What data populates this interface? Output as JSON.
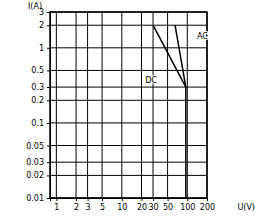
{
  "chart_data": {
    "type": "line",
    "x_label": "U(V)",
    "y_label": "I(A)",
    "log": true,
    "grid": true,
    "xlim": [
      0.8,
      200
    ],
    "xticks": [
      1,
      2,
      3,
      5,
      10,
      20,
      30,
      50,
      100,
      200
    ],
    "ylim": [
      0.01,
      3
    ],
    "yticks": [
      0.01,
      0.02,
      0.03,
      0.05,
      0.1,
      0.2,
      0.3,
      0.5,
      1,
      2,
      3
    ],
    "series": [
      {
        "name": "DC",
        "color": "#000000",
        "x": [
          30,
          95,
          95
        ],
        "values": [
          2,
          0.3,
          0.01
        ]
      },
      {
        "name": "AC",
        "color": "#000000",
        "x": [
          65,
          95
        ],
        "values": [
          2,
          0.3
        ]
      }
    ]
  }
}
